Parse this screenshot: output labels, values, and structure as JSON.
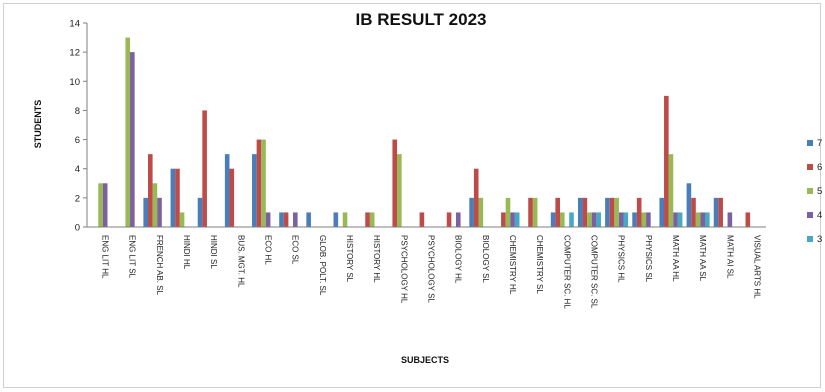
{
  "chart_data": {
    "type": "bar",
    "title": "IB RESULT 2023",
    "xlabel": "SUBJECTS",
    "ylabel": "STUDENTS",
    "ylim": [
      0,
      14
    ],
    "yticks": [
      0,
      2,
      4,
      6,
      8,
      10,
      12,
      14
    ],
    "grid": false,
    "legend_position": "right",
    "categories": [
      "ENG LIT HL",
      "ENG LIT SL",
      "FRENCH AB. SL",
      "HINDI HL",
      "HINDI SL",
      "BUS. MGT. HL",
      "ECO HL",
      "ECO SL",
      "GLOB. POLT. SL",
      "HISTORY SL",
      "HISTORY HL",
      "PSYCHOLOGY HL",
      "PSYCHOLOGY SL",
      "BIOLOGY HL",
      "BIOLOGY SL",
      "CHEMISTRY HL",
      "CHEMISTRY SL",
      "COMPUTER SC. HL",
      "COMPUTER SC. SL",
      "PHYSICS HL",
      "PHYSICS SL",
      "MATH AA HL",
      "MATH AA SL",
      "MATH AI SL",
      "VISUAL ARTS HL"
    ],
    "series": [
      {
        "name": "7",
        "color": "#4a7ebb",
        "values": [
          0,
          0,
          2,
          4,
          2,
          5,
          5,
          1,
          1,
          1,
          0,
          0,
          0,
          0,
          2,
          0,
          0,
          1,
          2,
          2,
          1,
          2,
          3,
          2,
          0
        ]
      },
      {
        "name": "6",
        "color": "#be4b48",
        "values": [
          0,
          0,
          5,
          4,
          8,
          4,
          6,
          1,
          0,
          0,
          1,
          6,
          1,
          1,
          4,
          1,
          2,
          2,
          2,
          2,
          2,
          9,
          2,
          2,
          1
        ]
      },
      {
        "name": "5",
        "color": "#98b954",
        "values": [
          3,
          13,
          3,
          1,
          0,
          0,
          6,
          0,
          0,
          1,
          1,
          5,
          0,
          0,
          2,
          2,
          2,
          1,
          1,
          2,
          1,
          5,
          1,
          0,
          0
        ]
      },
      {
        "name": "4",
        "color": "#7d60a0",
        "values": [
          3,
          12,
          2,
          0,
          0,
          0,
          1,
          1,
          0,
          0,
          0,
          0,
          0,
          1,
          0,
          1,
          0,
          0,
          1,
          1,
          1,
          1,
          1,
          1,
          0
        ]
      },
      {
        "name": "3",
        "color": "#46aac5",
        "values": [
          0,
          0,
          0,
          0,
          0,
          0,
          0,
          0,
          0,
          0,
          0,
          0,
          0,
          0,
          0,
          1,
          0,
          1,
          1,
          1,
          0,
          1,
          1,
          0,
          0
        ]
      }
    ]
  }
}
